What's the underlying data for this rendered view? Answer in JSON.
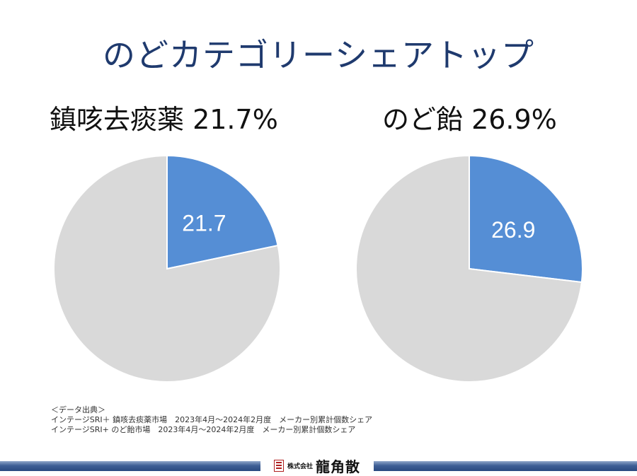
{
  "title": "のどカテゴリーシェアトップ",
  "chart_data": [
    {
      "type": "pie",
      "heading": "鎮咳去痰薬 21.7%",
      "slices": [
        {
          "label": "21.7",
          "value": 21.7,
          "color": "#558ed5"
        },
        {
          "label": "",
          "value": 78.3,
          "color": "#d9d9d9"
        }
      ]
    },
    {
      "type": "pie",
      "heading": "のど飴 26.9%",
      "slices": [
        {
          "label": "26.9",
          "value": 26.9,
          "color": "#558ed5"
        },
        {
          "label": "",
          "value": 73.1,
          "color": "#d9d9d9"
        }
      ]
    }
  ],
  "source": {
    "heading": "＜データ出典＞",
    "line1": "インテージSRI＋ 鎮咳去痰薬市場　2023年4月～2024年2月度　メーカー別累計個数シェア",
    "line2": "インテージSRI+ のど飴市場　2023年4月～2024年2月度　メーカー別累計個数シェア"
  },
  "footer": {
    "company_prefix": "株式会社",
    "company_name": "龍角散"
  }
}
